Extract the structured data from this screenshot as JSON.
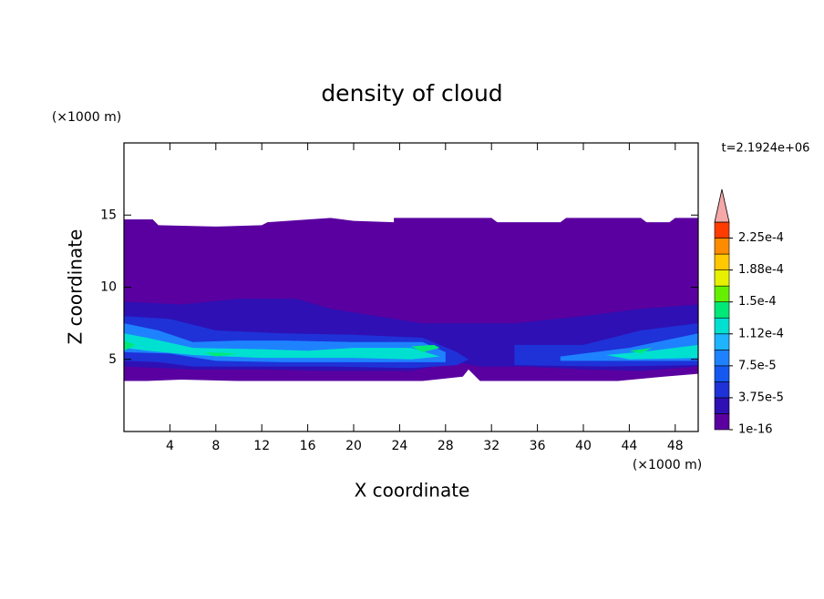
{
  "chart_data": {
    "type": "contour",
    "title": "density of cloud",
    "x_label": "X coordinate",
    "y_label": "Z coordinate",
    "x_unit": "(×1000 m)",
    "y_unit": "(×1000 m)",
    "annotation": "t=2.1924e+06",
    "xlim": [
      0,
      50
    ],
    "ylim": [
      0,
      20
    ],
    "xticks": [
      4,
      8,
      12,
      16,
      20,
      24,
      28,
      32,
      36,
      40,
      44,
      48
    ],
    "yticks": [
      5,
      10,
      15
    ],
    "levels": [
      1e-16,
      1.875e-05,
      3.75e-05,
      5.625e-05,
      7.5e-05,
      9.375e-05,
      0.0001125,
      0.00013125,
      0.00015,
      0.00016875,
      0.0001875,
      0.00020625,
      0.000225,
      0.00024375
    ],
    "colors": [
      "#5a00a0",
      "#2e10b4",
      "#1e32d8",
      "#1458f0",
      "#1e82ff",
      "#1eb4ff",
      "#00e0d0",
      "#00e878",
      "#64f000",
      "#e6f000",
      "#ffc800",
      "#ff8c00",
      "#ff3c00"
    ],
    "extend_color": "#f4a8a8",
    "cbar_ticks": [
      1e-16,
      {
        "value": 3.75e-05,
        "label": "3.75e-5"
      },
      {
        "value": 7.5e-05,
        "label": "7.5e-5"
      },
      {
        "value": 0.0001125,
        "label": "1.12e-4"
      },
      {
        "value": 0.00015,
        "label": "1.5e-4"
      },
      {
        "value": 0.0001875,
        "label": "1.88e-4"
      },
      {
        "value": 0.000225,
        "label": "2.25e-4"
      }
    ],
    "regions": [
      {
        "value": 1e-16,
        "x": [
          0,
          2.5,
          3,
          8,
          12,
          12.5,
          18,
          20,
          23.5,
          23.5,
          32,
          32.5,
          38,
          38.5,
          45,
          45.5,
          47.5,
          48,
          50,
          50,
          47,
          43,
          38,
          33,
          31,
          30,
          29.5,
          26,
          20,
          15,
          10,
          5,
          2,
          0
        ],
        "z": [
          14.7,
          14.7,
          14.3,
          14.2,
          14.3,
          14.5,
          14.8,
          14.6,
          14.5,
          14.8,
          14.8,
          14.5,
          14.5,
          14.8,
          14.8,
          14.5,
          14.5,
          14.8,
          14.8,
          4,
          3.8,
          3.5,
          3.5,
          3.5,
          3.5,
          4.3,
          3.8,
          3.5,
          3.5,
          3.5,
          3.5,
          3.6,
          3.5,
          3.5
        ]
      },
      {
        "value": 2e-05,
        "x": [
          0,
          5,
          10,
          15,
          18,
          22,
          26,
          30,
          34,
          40,
          45,
          50,
          50,
          45,
          40,
          35,
          31,
          29,
          25,
          18,
          12,
          6,
          0
        ],
        "z": [
          9,
          8.8,
          9.2,
          9.2,
          8.5,
          8,
          7.5,
          7.5,
          7.5,
          8,
          8.5,
          8.8,
          4.5,
          4.2,
          4.3,
          4.5,
          4.5,
          4.8,
          4.2,
          4.2,
          4.3,
          4.3,
          4.5
        ]
      },
      {
        "value": 4e-05,
        "x": [
          0,
          4,
          8,
          14,
          20,
          26,
          29,
          30,
          29,
          25,
          18,
          12,
          6,
          3,
          0
        ],
        "z": [
          8,
          7.8,
          7,
          6.8,
          6.7,
          6.5,
          5.5,
          5,
          4.6,
          4.4,
          4.5,
          4.5,
          4.5,
          4.8,
          4.9
        ]
      },
      {
        "value": 4e-05,
        "x": [
          34,
          40,
          45,
          50,
          50,
          42,
          34
        ],
        "z": [
          6,
          6,
          7,
          7.5,
          4.6,
          4.5,
          4.6
        ]
      },
      {
        "value": 8e-05,
        "x": [
          0,
          3,
          6,
          10,
          14,
          20,
          26,
          28,
          28,
          20,
          14,
          8,
          4,
          0
        ],
        "z": [
          7.5,
          7,
          6.2,
          6.3,
          6.3,
          6.2,
          6.2,
          5.5,
          4.8,
          4.8,
          4.8,
          4.9,
          5.4,
          5.5
        ]
      },
      {
        "value": 8e-05,
        "x": [
          38,
          44,
          50,
          50,
          44,
          38
        ],
        "z": [
          5.2,
          5.8,
          6.8,
          4.9,
          4.9,
          4.9
        ]
      },
      {
        "value": 0.00012,
        "x": [
          0,
          2,
          6,
          12,
          16,
          20,
          25,
          27.5,
          25,
          20,
          16,
          12,
          6,
          2,
          0
        ],
        "z": [
          6.8,
          6.5,
          5.8,
          5.7,
          5.6,
          5.8,
          5.8,
          5.2,
          5,
          5.1,
          5.1,
          5.1,
          5.3,
          5.6,
          5.8
        ]
      },
      {
        "value": 0.00012,
        "x": [
          42,
          46,
          50,
          50,
          44
        ],
        "z": [
          5.3,
          5.6,
          6,
          5.1,
          5
        ]
      },
      {
        "value": 0.00014,
        "x": [
          0,
          1,
          0
        ],
        "z": [
          6.3,
          6,
          5.6
        ]
      },
      {
        "value": 0.00014,
        "x": [
          7,
          10,
          8
        ],
        "z": [
          5.5,
          5.4,
          5.2
        ]
      },
      {
        "value": 0.00014,
        "x": [
          25,
          27,
          27.5,
          26
        ],
        "z": [
          5.9,
          6,
          5.8,
          5.5
        ]
      },
      {
        "value": 0.00014,
        "x": [
          44,
          46,
          45
        ],
        "z": [
          5.6,
          5.8,
          5.4
        ]
      }
    ]
  }
}
